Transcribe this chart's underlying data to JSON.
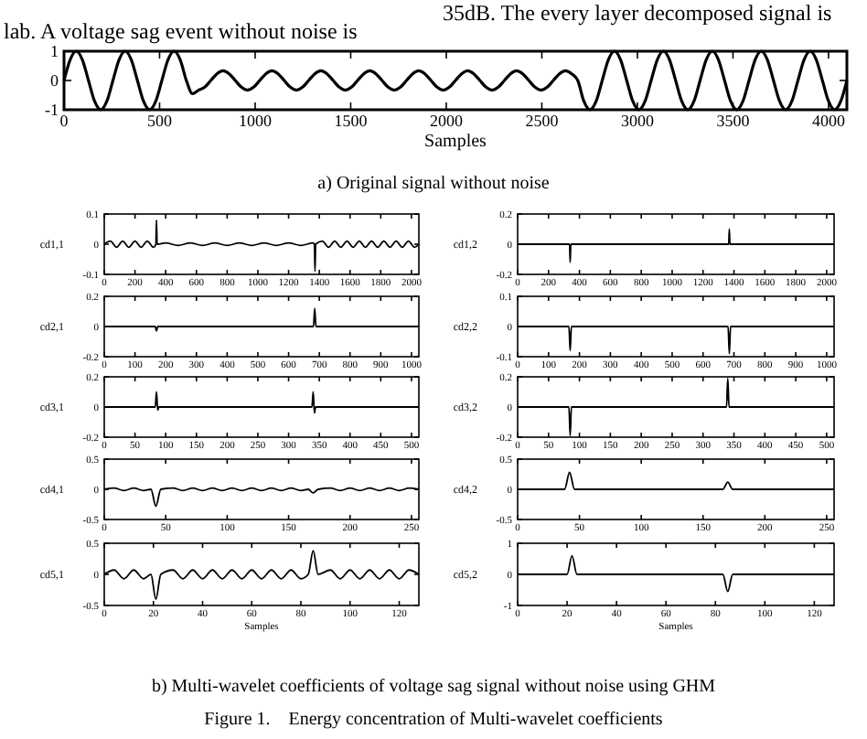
{
  "chart_data": [
    {
      "type": "line",
      "xlabel": "Samples",
      "xlim": [
        0,
        4096
      ],
      "xticks": [
        0,
        500,
        1000,
        1500,
        2000,
        2500,
        3000,
        3500,
        4000
      ],
      "ylim": [
        -1,
        1
      ],
      "yticks": [
        -1,
        0,
        1
      ],
      "annotations": [
        "lab. A voltage sag event without noise is",
        "35dB. The every layer decomposed signal is",
        "a) Original signal without noise"
      ],
      "x": [
        0,
        32,
        64,
        96,
        128,
        160,
        192,
        224,
        256,
        288,
        320,
        352,
        384,
        416,
        448,
        480,
        512,
        544,
        576,
        608,
        640,
        672,
        704,
        736,
        768,
        800,
        832,
        864,
        896,
        928,
        960,
        992,
        1024,
        1056,
        1088,
        1120,
        1152,
        1184,
        1216,
        1248,
        1280,
        1312,
        1344,
        1376,
        1408,
        1440,
        1472,
        1504,
        1536,
        1568,
        1600,
        1632,
        1664,
        1696,
        1728,
        1760,
        1792,
        1824,
        1856,
        1888,
        1920,
        1952,
        1984,
        2016,
        2048,
        2080,
        2112,
        2144,
        2176,
        2208,
        2240,
        2272,
        2304,
        2336,
        2368,
        2400,
        2432,
        2464,
        2496,
        2528,
        2560,
        2592,
        2624,
        2656,
        2688,
        2720,
        2752,
        2784,
        2816,
        2848,
        2880,
        2912,
        2944,
        2976,
        3008,
        3040,
        3072,
        3104,
        3136,
        3168,
        3200,
        3232,
        3264,
        3296,
        3328,
        3360,
        3392,
        3424,
        3456,
        3488,
        3520,
        3552,
        3584,
        3616,
        3648,
        3680,
        3712,
        3744,
        3776,
        3808,
        3840,
        3872,
        3904,
        3936,
        3968,
        4000,
        4032,
        4064,
        4096
      ],
      "series": [
        {
          "color": "#000000",
          "values": [
            0,
            0.71,
            1,
            0.71,
            0,
            -0.71,
            -1,
            -0.71,
            0,
            0.71,
            1,
            0.71,
            0,
            -0.71,
            -1,
            -0.71,
            0,
            0.71,
            1,
            0.71,
            0,
            -0.45,
            -0.33,
            -0.23,
            0,
            0.23,
            0.33,
            0.23,
            0,
            -0.23,
            -0.33,
            -0.23,
            0,
            0.23,
            0.33,
            0.23,
            0,
            -0.23,
            -0.33,
            -0.23,
            0,
            0.23,
            0.33,
            0.23,
            0,
            -0.23,
            -0.33,
            -0.23,
            0,
            0.23,
            0.33,
            0.23,
            0,
            -0.23,
            -0.33,
            -0.23,
            0,
            0.23,
            0.33,
            0.23,
            0,
            -0.23,
            -0.33,
            -0.23,
            0,
            0.23,
            0.33,
            0.23,
            0,
            -0.23,
            -0.33,
            -0.23,
            0,
            0.23,
            0.33,
            0.23,
            0,
            -0.23,
            -0.33,
            -0.23,
            0,
            0.23,
            0.33,
            0.23,
            0,
            -0.71,
            -1,
            -0.71,
            0,
            0.71,
            1,
            0.71,
            0,
            -0.71,
            -1,
            -0.71,
            0,
            0.71,
            1,
            0.71,
            0,
            -0.71,
            -1,
            -0.71,
            0,
            0.71,
            1,
            0.71,
            0,
            -0.71,
            -1,
            -0.71,
            0,
            0.71,
            1,
            0.71,
            0,
            -0.71,
            -1,
            -0.71,
            0,
            0.71,
            1,
            0.71,
            0,
            -0.71,
            -1,
            -0.71,
            0
          ]
        }
      ]
    },
    {
      "type": "line",
      "ylabel": "cd1,1",
      "xlim": [
        0,
        2048
      ],
      "xticks": [
        0,
        200,
        400,
        600,
        800,
        1000,
        1200,
        1400,
        1600,
        1800,
        2000
      ],
      "ylim": [
        -0.1,
        0.1
      ],
      "yticks": [
        -0.1,
        0,
        0.1
      ],
      "x": [
        0,
        40,
        80,
        120,
        160,
        200,
        240,
        280,
        320,
        336,
        340,
        344,
        400,
        480,
        560,
        640,
        720,
        800,
        880,
        960,
        1040,
        1120,
        1200,
        1280,
        1360,
        1368,
        1372,
        1376,
        1420,
        1460,
        1500,
        1540,
        1580,
        1620,
        1660,
        1700,
        1740,
        1780,
        1820,
        1860,
        1900,
        1940,
        1980,
        2020,
        2048
      ],
      "series": [
        {
          "color": "#000000",
          "values": [
            0,
            0.01,
            -0.01,
            0.01,
            -0.01,
            0.01,
            -0.01,
            0.01,
            -0.01,
            0,
            0.08,
            0,
            0.004,
            -0.004,
            0.004,
            -0.004,
            0.004,
            -0.004,
            0.004,
            -0.004,
            0.004,
            -0.004,
            0.004,
            -0.004,
            0.004,
            0,
            -0.09,
            0,
            0.01,
            -0.01,
            0.01,
            -0.01,
            0.01,
            -0.01,
            0.01,
            -0.01,
            0.01,
            -0.01,
            0.01,
            -0.01,
            0.01,
            -0.01,
            0.01,
            -0.01,
            0
          ]
        }
      ]
    },
    {
      "type": "line",
      "ylabel": "cd1,2",
      "xlim": [
        0,
        2048
      ],
      "xticks": [
        0,
        200,
        400,
        600,
        800,
        1000,
        1200,
        1400,
        1600,
        1800,
        2000
      ],
      "ylim": [
        -0.2,
        0.2
      ],
      "yticks": [
        -0.2,
        0,
        0.2
      ],
      "x": [
        0,
        336,
        340,
        344,
        1366,
        1370,
        1374,
        2048
      ],
      "series": [
        {
          "color": "#000000",
          "values": [
            0,
            0,
            -0.12,
            0,
            0,
            0.1,
            0,
            0
          ]
        }
      ]
    },
    {
      "type": "line",
      "ylabel": "cd2,1",
      "xlim": [
        0,
        1024
      ],
      "xticks": [
        0,
        100,
        200,
        300,
        400,
        500,
        600,
        700,
        800,
        900,
        1000
      ],
      "ylim": [
        -0.2,
        0.2
      ],
      "yticks": [
        -0.2,
        0,
        0.2
      ],
      "x": [
        0,
        166,
        170,
        174,
        681,
        685,
        689,
        1024
      ],
      "series": [
        {
          "color": "#000000",
          "values": [
            0,
            0,
            -0.03,
            0,
            0,
            0.12,
            0,
            0
          ]
        }
      ]
    },
    {
      "type": "line",
      "ylabel": "cd2,2",
      "xlim": [
        0,
        1024
      ],
      "xticks": [
        0,
        100,
        200,
        300,
        400,
        500,
        600,
        700,
        800,
        900,
        1000
      ],
      "ylim": [
        -0.1,
        0.1
      ],
      "yticks": [
        -0.1,
        0,
        0.1
      ],
      "x": [
        0,
        166,
        170,
        174,
        681,
        685,
        689,
        1024
      ],
      "series": [
        {
          "color": "#000000",
          "values": [
            0,
            0,
            -0.08,
            0,
            0,
            -0.09,
            0,
            0
          ]
        }
      ]
    },
    {
      "type": "line",
      "ylabel": "cd3,1",
      "xlim": [
        0,
        512
      ],
      "xticks": [
        0,
        50,
        100,
        150,
        200,
        250,
        300,
        350,
        400,
        450,
        500
      ],
      "ylim": [
        -0.2,
        0.2
      ],
      "yticks": [
        -0.2,
        0,
        0.2
      ],
      "x": [
        0,
        83,
        85,
        87,
        89,
        338,
        340,
        342,
        344,
        512
      ],
      "series": [
        {
          "color": "#000000",
          "values": [
            0,
            0,
            0.1,
            -0.02,
            0,
            0,
            0.1,
            -0.04,
            0,
            0
          ]
        }
      ]
    },
    {
      "type": "line",
      "ylabel": "cd3,2",
      "xlim": [
        0,
        512
      ],
      "xticks": [
        0,
        50,
        100,
        150,
        200,
        250,
        300,
        350,
        400,
        450,
        500
      ],
      "ylim": [
        -0.2,
        0.2
      ],
      "yticks": [
        -0.2,
        0,
        0.2
      ],
      "x": [
        0,
        83,
        85,
        87,
        338,
        340,
        342,
        512
      ],
      "series": [
        {
          "color": "#000000",
          "values": [
            0,
            0,
            -0.19,
            0,
            0,
            0.19,
            0,
            0
          ]
        }
      ]
    },
    {
      "type": "line",
      "ylabel": "cd4,1",
      "xlim": [
        0,
        256
      ],
      "xticks": [
        0,
        50,
        100,
        150,
        200,
        250
      ],
      "ylim": [
        -0.5,
        0.5
      ],
      "yticks": [
        -0.5,
        0,
        0.5
      ],
      "x": [
        0,
        8,
        16,
        24,
        32,
        38,
        42,
        46,
        56,
        64,
        72,
        80,
        88,
        96,
        104,
        112,
        120,
        128,
        136,
        144,
        152,
        160,
        166,
        170,
        174,
        184,
        192,
        200,
        208,
        216,
        224,
        232,
        240,
        248,
        256
      ],
      "series": [
        {
          "color": "#000000",
          "values": [
            0,
            0.02,
            -0.02,
            0.02,
            -0.02,
            0,
            -0.28,
            0,
            0.02,
            -0.02,
            0.02,
            -0.02,
            0.02,
            -0.02,
            0.02,
            -0.02,
            0.02,
            -0.02,
            0.02,
            -0.02,
            0.02,
            -0.02,
            0,
            -0.06,
            0,
            0.02,
            -0.02,
            0.02,
            -0.02,
            0.02,
            -0.02,
            0.02,
            -0.02,
            0.02,
            0
          ]
        }
      ]
    },
    {
      "type": "line",
      "ylabel": "cd4,2",
      "xlim": [
        0,
        256
      ],
      "xticks": [
        0,
        50,
        100,
        150,
        200,
        250
      ],
      "ylim": [
        -0.5,
        0.5
      ],
      "yticks": [
        -0.5,
        0,
        0.5
      ],
      "x": [
        0,
        38,
        42,
        46,
        166,
        170,
        174,
        256
      ],
      "series": [
        {
          "color": "#000000",
          "values": [
            0,
            0,
            0.28,
            0,
            0,
            0.12,
            0,
            0
          ]
        }
      ]
    },
    {
      "type": "line",
      "ylabel": "cd5,1",
      "xlabel": "Samples",
      "xlim": [
        0,
        128
      ],
      "xticks": [
        0,
        20,
        40,
        60,
        80,
        100,
        120
      ],
      "ylim": [
        -0.5,
        0.5
      ],
      "yticks": [
        -0.5,
        0,
        0.5
      ],
      "x": [
        0,
        4,
        8,
        12,
        16,
        19,
        21,
        23,
        28,
        32,
        36,
        40,
        44,
        48,
        52,
        56,
        60,
        64,
        68,
        72,
        76,
        80,
        83,
        85,
        87,
        92,
        96,
        100,
        104,
        108,
        112,
        116,
        120,
        124,
        128
      ],
      "series": [
        {
          "color": "#000000",
          "values": [
            0,
            0.07,
            -0.07,
            0.07,
            -0.07,
            0,
            -0.4,
            0,
            0.07,
            -0.07,
            0.07,
            -0.07,
            0.07,
            -0.07,
            0.07,
            -0.07,
            0.07,
            -0.07,
            0.07,
            -0.07,
            0.07,
            -0.07,
            0,
            0.38,
            0,
            0.07,
            -0.07,
            0.07,
            -0.07,
            0.07,
            -0.07,
            0.07,
            -0.07,
            0.07,
            0
          ]
        }
      ]
    },
    {
      "type": "line",
      "ylabel": "cd5,2",
      "xlabel": "Samples",
      "xlim": [
        0,
        128
      ],
      "xticks": [
        0,
        20,
        40,
        60,
        80,
        100,
        120
      ],
      "ylim": [
        -1,
        1
      ],
      "yticks": [
        -1,
        0,
        1
      ],
      "annotations": [
        "b) Multi-wavelet coefficients of voltage sag signal without noise using GHM",
        "Figure 1.    Energy concentration of Multi-wavelet coefficients"
      ],
      "x": [
        0,
        20,
        22,
        24,
        83,
        85,
        87,
        128
      ],
      "series": [
        {
          "color": "#000000",
          "values": [
            0,
            0,
            0.6,
            0,
            0,
            -0.55,
            0,
            0
          ]
        }
      ]
    }
  ]
}
